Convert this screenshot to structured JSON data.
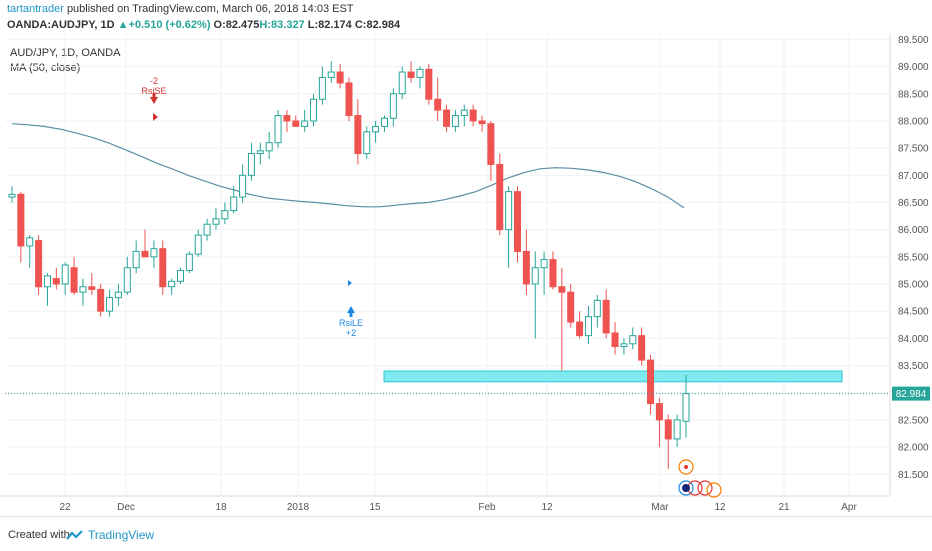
{
  "header": {
    "author": "tartantrader",
    "published_text": "published on TradingView.com, March 06, 2018 14:03 EST",
    "symbol": "OANDA:AUDJPY, 1D",
    "change_arrow": "▲",
    "change": "+0.510 (+0.62%)",
    "ohlc": {
      "open": "O:82.475",
      "high": "H:83.327",
      "low": "L:82.174",
      "close": "C:82.984"
    }
  },
  "legend": {
    "pair": "AUD/JPY, 1D, OANDA",
    "indicator": "MA (50, close)"
  },
  "footer": {
    "created": "Created with",
    "brand": "TradingView"
  },
  "chart_data": {
    "type": "candlestick",
    "y_axis_ticks": [
      "81.500",
      "82.000",
      "82.500",
      "83.000",
      "83.500",
      "84.000",
      "84.500",
      "85.000",
      "85.500",
      "86.000",
      "86.500",
      "87.000",
      "87.500",
      "88.000",
      "88.500",
      "89.000",
      "89.500"
    ],
    "x_axis_ticks": [
      "22",
      "Dec",
      "18",
      "2018",
      "15",
      "Feb",
      "12",
      "Mar",
      "12",
      "21",
      "Apr"
    ],
    "ylim": [
      81.1,
      89.6
    ],
    "last_price": "82.984",
    "colors": {
      "up": "#26a69a",
      "down": "#ef5350",
      "ma": "#5b8ea6",
      "zone": "#7fe9f0",
      "price_line": "#26a69a",
      "last_badge": "#26a69a"
    },
    "candles": [
      {
        "o": 86.6,
        "h": 86.8,
        "l": 86.5,
        "c": 86.65
      },
      {
        "o": 86.65,
        "h": 86.7,
        "l": 85.4,
        "c": 85.7
      },
      {
        "o": 85.7,
        "h": 85.9,
        "l": 85.3,
        "c": 85.85
      },
      {
        "o": 85.8,
        "h": 85.9,
        "l": 84.8,
        "c": 84.95
      },
      {
        "o": 84.95,
        "h": 85.2,
        "l": 84.6,
        "c": 85.15
      },
      {
        "o": 85.1,
        "h": 85.3,
        "l": 84.9,
        "c": 85.0
      },
      {
        "o": 85.0,
        "h": 85.4,
        "l": 84.8,
        "c": 85.35
      },
      {
        "o": 85.3,
        "h": 85.5,
        "l": 84.8,
        "c": 84.85
      },
      {
        "o": 84.85,
        "h": 85.1,
        "l": 84.6,
        "c": 84.95
      },
      {
        "o": 84.95,
        "h": 85.2,
        "l": 84.8,
        "c": 84.9
      },
      {
        "o": 84.9,
        "h": 85.0,
        "l": 84.4,
        "c": 84.5
      },
      {
        "o": 84.5,
        "h": 84.9,
        "l": 84.4,
        "c": 84.75
      },
      {
        "o": 84.75,
        "h": 85.0,
        "l": 84.6,
        "c": 84.85
      },
      {
        "o": 84.85,
        "h": 85.5,
        "l": 84.8,
        "c": 85.3
      },
      {
        "o": 85.3,
        "h": 85.8,
        "l": 85.2,
        "c": 85.6
      },
      {
        "o": 85.6,
        "h": 86.0,
        "l": 85.5,
        "c": 85.5
      },
      {
        "o": 85.5,
        "h": 85.8,
        "l": 85.3,
        "c": 85.65
      },
      {
        "o": 85.65,
        "h": 85.8,
        "l": 84.8,
        "c": 84.95
      },
      {
        "o": 84.95,
        "h": 85.1,
        "l": 84.8,
        "c": 85.05
      },
      {
        "o": 85.05,
        "h": 85.3,
        "l": 85.0,
        "c": 85.25
      },
      {
        "o": 85.25,
        "h": 85.6,
        "l": 85.2,
        "c": 85.55
      },
      {
        "o": 85.55,
        "h": 86.0,
        "l": 85.5,
        "c": 85.9
      },
      {
        "o": 85.9,
        "h": 86.2,
        "l": 85.8,
        "c": 86.1
      },
      {
        "o": 86.1,
        "h": 86.4,
        "l": 86.0,
        "c": 86.2
      },
      {
        "o": 86.2,
        "h": 86.5,
        "l": 86.1,
        "c": 86.35
      },
      {
        "o": 86.35,
        "h": 86.8,
        "l": 86.3,
        "c": 86.6
      },
      {
        "o": 86.6,
        "h": 87.2,
        "l": 86.5,
        "c": 87.0
      },
      {
        "o": 87.0,
        "h": 87.6,
        "l": 86.9,
        "c": 87.4
      },
      {
        "o": 87.4,
        "h": 87.6,
        "l": 87.2,
        "c": 87.45
      },
      {
        "o": 87.45,
        "h": 87.8,
        "l": 87.3,
        "c": 87.6
      },
      {
        "o": 87.6,
        "h": 88.2,
        "l": 87.5,
        "c": 88.1
      },
      {
        "o": 88.1,
        "h": 88.2,
        "l": 87.8,
        "c": 88.0
      },
      {
        "o": 88.0,
        "h": 88.1,
        "l": 87.9,
        "c": 87.9
      },
      {
        "o": 87.9,
        "h": 88.2,
        "l": 87.8,
        "c": 88.0
      },
      {
        "o": 88.0,
        "h": 88.5,
        "l": 87.9,
        "c": 88.4
      },
      {
        "o": 88.4,
        "h": 89.0,
        "l": 88.3,
        "c": 88.8
      },
      {
        "o": 88.8,
        "h": 89.1,
        "l": 88.7,
        "c": 88.9
      },
      {
        "o": 88.9,
        "h": 89.05,
        "l": 88.6,
        "c": 88.7
      },
      {
        "o": 88.7,
        "h": 88.8,
        "l": 88.0,
        "c": 88.1
      },
      {
        "o": 88.1,
        "h": 88.4,
        "l": 87.2,
        "c": 87.4
      },
      {
        "o": 87.4,
        "h": 87.9,
        "l": 87.3,
        "c": 87.8
      },
      {
        "o": 87.8,
        "h": 88.0,
        "l": 87.6,
        "c": 87.9
      },
      {
        "o": 87.9,
        "h": 88.1,
        "l": 87.8,
        "c": 88.05
      },
      {
        "o": 88.05,
        "h": 88.6,
        "l": 87.9,
        "c": 88.5
      },
      {
        "o": 88.5,
        "h": 89.0,
        "l": 88.4,
        "c": 88.9
      },
      {
        "o": 88.9,
        "h": 89.1,
        "l": 88.7,
        "c": 88.8
      },
      {
        "o": 88.8,
        "h": 89.0,
        "l": 88.6,
        "c": 88.95
      },
      {
        "o": 88.95,
        "h": 89.05,
        "l": 88.3,
        "c": 88.4
      },
      {
        "o": 88.4,
        "h": 88.8,
        "l": 88.0,
        "c": 88.2
      },
      {
        "o": 88.2,
        "h": 88.3,
        "l": 87.8,
        "c": 87.9
      },
      {
        "o": 87.9,
        "h": 88.2,
        "l": 87.8,
        "c": 88.1
      },
      {
        "o": 88.1,
        "h": 88.3,
        "l": 87.9,
        "c": 88.2
      },
      {
        "o": 88.2,
        "h": 88.3,
        "l": 87.9,
        "c": 88.0
      },
      {
        "o": 88.0,
        "h": 88.1,
        "l": 87.8,
        "c": 87.95
      },
      {
        "o": 87.95,
        "h": 88.0,
        "l": 86.9,
        "c": 87.2
      },
      {
        "o": 87.2,
        "h": 87.4,
        "l": 85.9,
        "c": 86.0
      },
      {
        "o": 86.0,
        "h": 86.8,
        "l": 85.3,
        "c": 86.7
      },
      {
        "o": 86.7,
        "h": 86.8,
        "l": 85.4,
        "c": 85.6
      },
      {
        "o": 85.6,
        "h": 86.0,
        "l": 84.8,
        "c": 85.0
      },
      {
        "o": 85.0,
        "h": 85.6,
        "l": 84.0,
        "c": 85.3
      },
      {
        "o": 85.3,
        "h": 85.6,
        "l": 84.8,
        "c": 85.45
      },
      {
        "o": 85.45,
        "h": 85.6,
        "l": 84.9,
        "c": 84.95
      },
      {
        "o": 84.95,
        "h": 85.3,
        "l": 83.4,
        "c": 84.85
      },
      {
        "o": 84.85,
        "h": 85.0,
        "l": 84.2,
        "c": 84.3
      },
      {
        "o": 84.3,
        "h": 84.5,
        "l": 84.0,
        "c": 84.05
      },
      {
        "o": 84.05,
        "h": 84.6,
        "l": 83.9,
        "c": 84.4
      },
      {
        "o": 84.4,
        "h": 84.8,
        "l": 84.2,
        "c": 84.7
      },
      {
        "o": 84.7,
        "h": 84.9,
        "l": 84.0,
        "c": 84.1
      },
      {
        "o": 84.1,
        "h": 84.3,
        "l": 83.7,
        "c": 83.85
      },
      {
        "o": 83.85,
        "h": 84.0,
        "l": 83.7,
        "c": 83.9
      },
      {
        "o": 83.9,
        "h": 84.2,
        "l": 83.8,
        "c": 84.05
      },
      {
        "o": 84.05,
        "h": 84.2,
        "l": 83.5,
        "c": 83.6
      },
      {
        "o": 83.6,
        "h": 83.7,
        "l": 82.6,
        "c": 82.8
      },
      {
        "o": 82.8,
        "h": 82.9,
        "l": 82.0,
        "c": 82.5
      },
      {
        "o": 82.5,
        "h": 82.6,
        "l": 81.6,
        "c": 82.15
      },
      {
        "o": 82.15,
        "h": 82.6,
        "l": 82.0,
        "c": 82.5
      },
      {
        "o": 82.475,
        "h": 83.327,
        "l": 82.174,
        "c": 82.984
      }
    ],
    "ma": [
      87.95,
      87.93,
      87.9,
      87.85,
      87.78,
      87.7,
      87.6,
      87.48,
      87.36,
      87.23,
      87.12,
      87.0,
      86.9,
      86.8,
      86.72,
      86.64,
      86.58,
      86.55,
      86.52,
      86.5,
      86.47,
      86.44,
      86.42,
      86.42,
      86.45,
      86.48,
      86.5,
      86.55,
      86.62,
      86.7,
      86.82,
      86.95,
      87.05,
      87.12,
      87.14,
      87.13,
      87.1,
      87.05,
      86.98,
      86.88,
      86.75,
      86.6,
      86.4
    ],
    "ma_start_index": 0,
    "zone": {
      "from_index": 25,
      "to_index": 80,
      "low": 83.2,
      "high": 83.4
    },
    "annotations": [
      {
        "text_top": "-2",
        "text_bottom": "RsiSE"
      },
      {
        "text_top": "RsiLE",
        "text_bottom": "+2"
      }
    ]
  }
}
